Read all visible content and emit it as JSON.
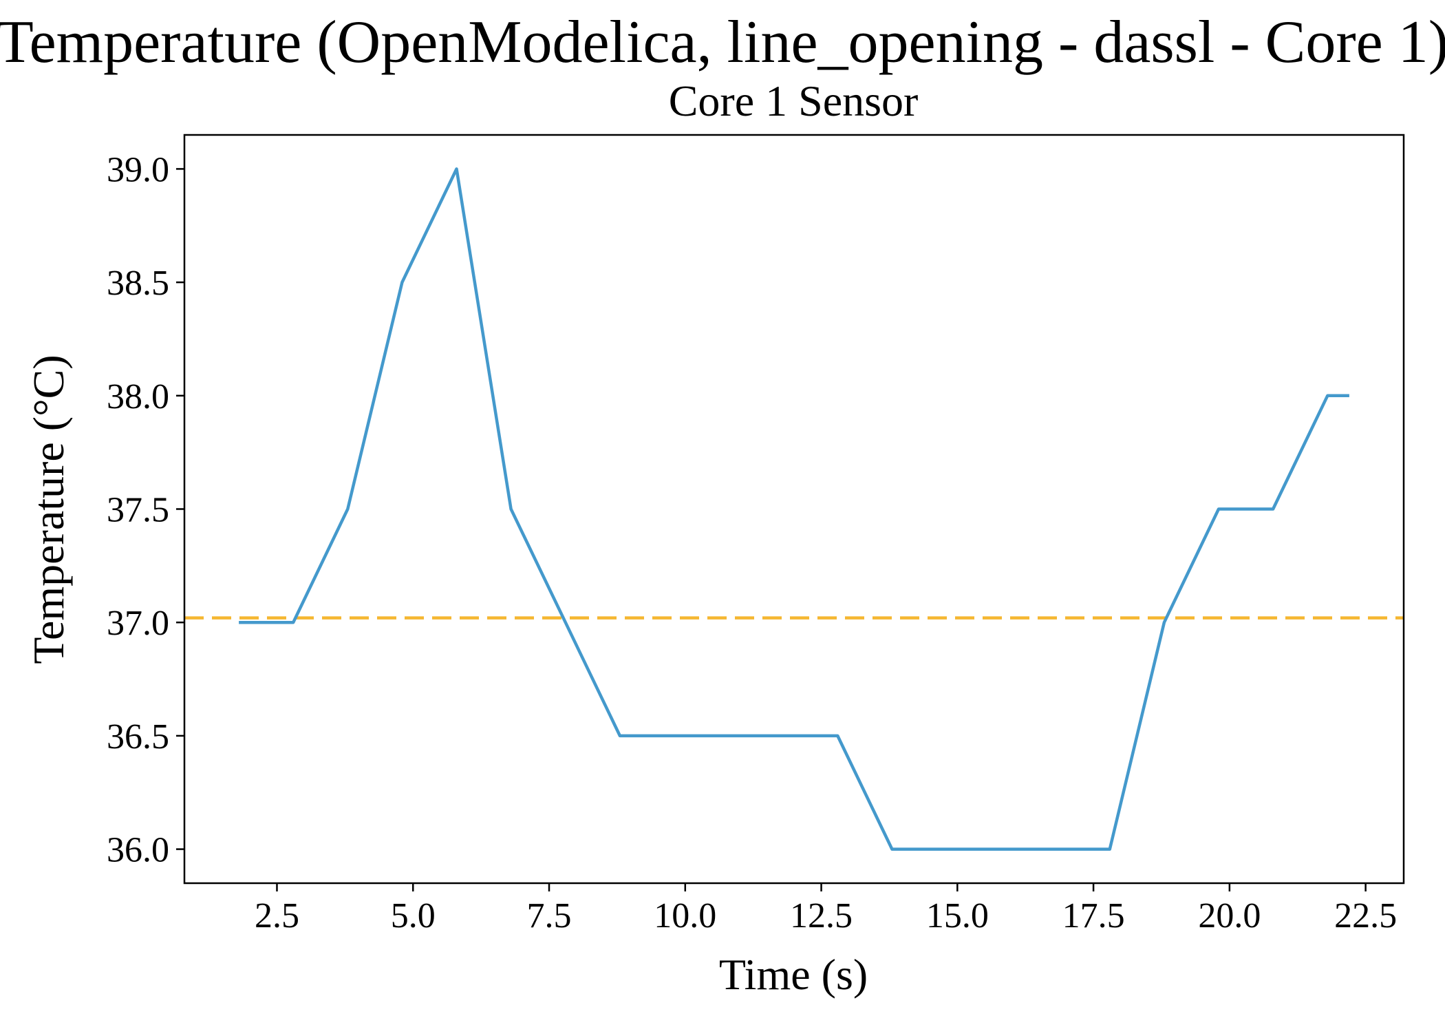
{
  "title": "Temperature (OpenModelica, line_opening - dassl - Core 1)",
  "chart_data": {
    "type": "line",
    "title": "Core 1 Sensor",
    "xlabel": "Time (s)",
    "ylabel": "Temperature (°C)",
    "xlim": [
      0.8,
      23.2
    ],
    "ylim": [
      35.85,
      39.15
    ],
    "xticks": [
      2.5,
      5.0,
      7.5,
      10.0,
      12.5,
      15.0,
      17.5,
      20.0,
      22.5
    ],
    "xtick_labels": [
      "2.5",
      "5.0",
      "7.5",
      "10.0",
      "12.5",
      "15.0",
      "17.5",
      "20.0",
      "22.5"
    ],
    "yticks": [
      36.0,
      36.5,
      37.0,
      37.5,
      38.0,
      38.5,
      39.0
    ],
    "ytick_labels": [
      "36.0",
      "36.5",
      "37.0",
      "37.5",
      "38.0",
      "38.5",
      "39.0"
    ],
    "grid": false,
    "series": [
      {
        "color": "#4499cc",
        "style": "solid",
        "x": [
          1.8,
          2.8,
          3.8,
          4.8,
          5.8,
          6.8,
          7.8,
          8.8,
          9.8,
          10.8,
          11.8,
          12.8,
          13.8,
          14.8,
          15.8,
          16.8,
          17.8,
          18.8,
          19.8,
          20.8,
          21.8,
          22.2
        ],
        "y": [
          37.0,
          37.0,
          37.5,
          38.5,
          39.0,
          37.5,
          37.0,
          36.5,
          36.5,
          36.5,
          36.5,
          36.5,
          36.0,
          36.0,
          36.0,
          36.0,
          36.0,
          37.0,
          37.5,
          37.5,
          38.0,
          38.0
        ]
      }
    ],
    "reference_lines": [
      {
        "orientation": "horizontal",
        "y": 37.02,
        "color": "#f5b731",
        "style": "dashed"
      }
    ]
  }
}
